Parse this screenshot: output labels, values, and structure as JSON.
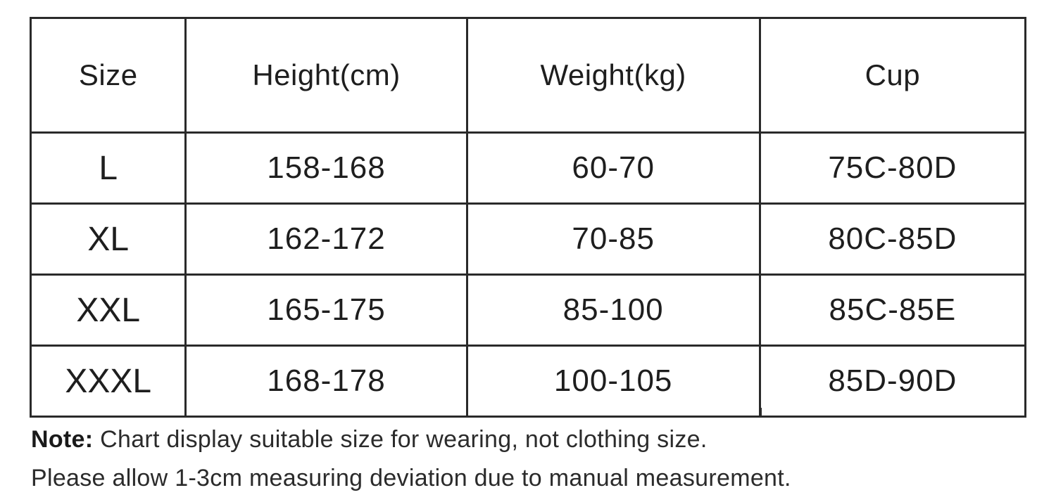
{
  "table": {
    "headers": {
      "size": "Size",
      "height": "Height(cm)",
      "weight": "Weight(kg)",
      "cup": "Cup"
    },
    "rows": [
      {
        "size": "L",
        "height": "158-168",
        "weight": "60-70",
        "cup": "75C-80D"
      },
      {
        "size": "XL",
        "height": "162-172",
        "weight": "70-85",
        "cup": "80C-85D"
      },
      {
        "size": "XXL",
        "height": "165-175",
        "weight": "85-100",
        "cup": "85C-85E"
      },
      {
        "size": "XXXL",
        "height": "168-178",
        "weight": "100-105",
        "cup": "85D-90D"
      }
    ]
  },
  "notes": {
    "note_label": "Note:",
    "note_text": " Chart display suitable size for wearing, not clothing size.",
    "deviation_text": "Please allow 1-3cm measuring deviation due to manual measurement."
  },
  "colors": {
    "background": "#ffffff",
    "border": "#2a2a2a",
    "text": "#1e1e1e"
  }
}
